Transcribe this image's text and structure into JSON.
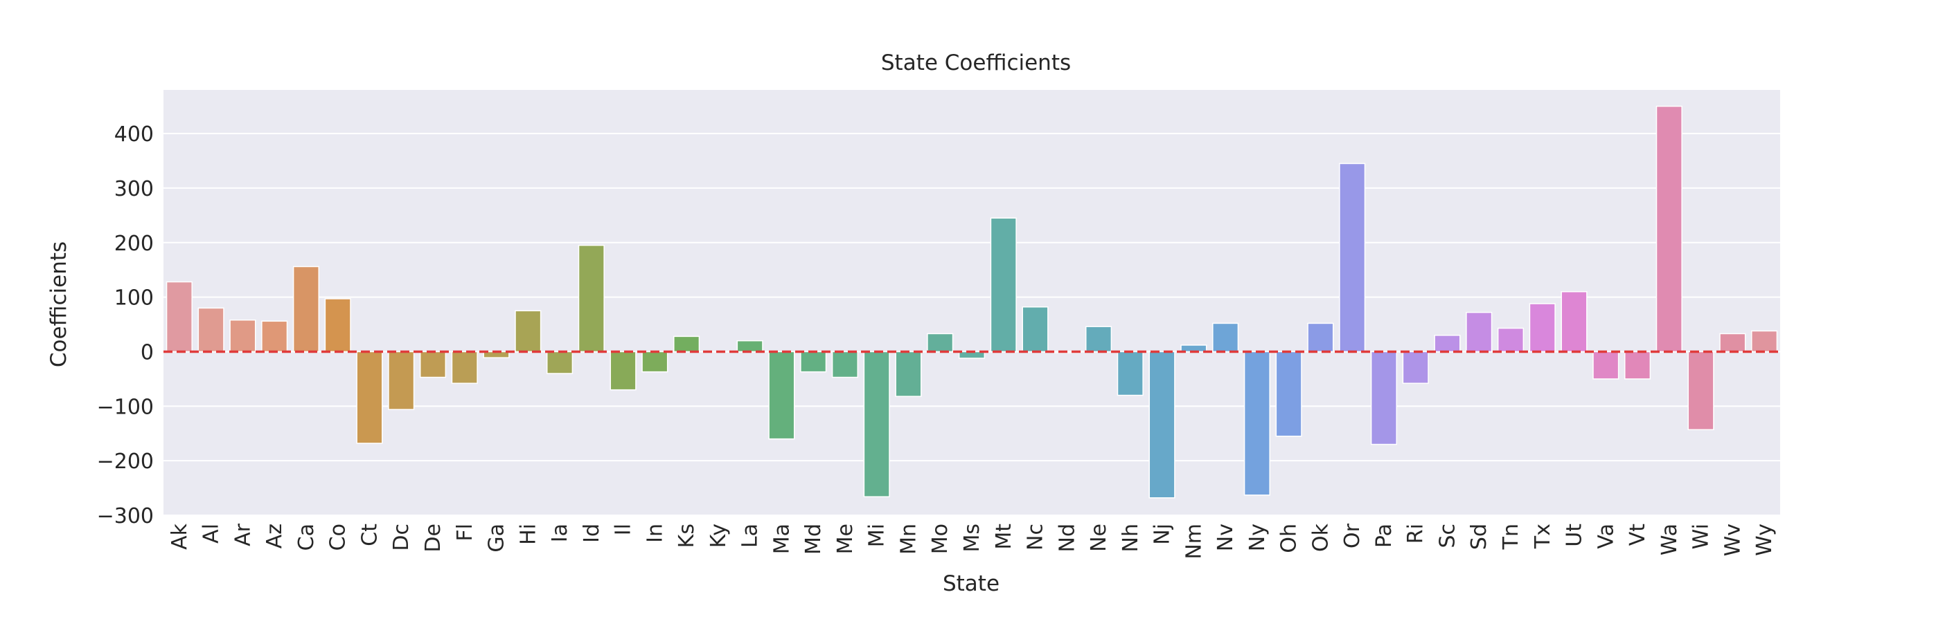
{
  "chart_data": {
    "type": "bar",
    "title": "State Coefficients",
    "xlabel": "State",
    "ylabel": "Coefficients",
    "ylim": [
      -300,
      480
    ],
    "yticks": [
      -300,
      -200,
      -100,
      0,
      100,
      200,
      300,
      400
    ],
    "ytick_labels": [
      "−300",
      "−200",
      "−100",
      "0",
      "100",
      "200",
      "300",
      "400"
    ],
    "grid": true,
    "zero_line": {
      "y": 0,
      "color": "#e03b3b",
      "style": "dashed"
    },
    "categories": [
      "Ak",
      "Al",
      "Ar",
      "Az",
      "Ca",
      "Co",
      "Ct",
      "Dc",
      "De",
      "Fl",
      "Ga",
      "Hi",
      "Ia",
      "Id",
      "Il",
      "In",
      "Ks",
      "Ky",
      "La",
      "Ma",
      "Md",
      "Me",
      "Mi",
      "Mn",
      "Mo",
      "Ms",
      "Mt",
      "Nc",
      "Nd",
      "Ne",
      "Nh",
      "Nj",
      "Nm",
      "Nv",
      "Ny",
      "Oh",
      "Ok",
      "Or",
      "Pa",
      "Ri",
      "Sc",
      "Sd",
      "Tn",
      "Tx",
      "Ut",
      "Va",
      "Vt",
      "Wa",
      "Wi",
      "Wv",
      "Wy"
    ],
    "values": [
      128,
      80,
      58,
      56,
      156,
      97,
      -168,
      -106,
      -47,
      -58,
      -11,
      75,
      -40,
      195,
      -70,
      -37,
      28,
      0,
      20,
      -160,
      -37,
      -47,
      -266,
      -82,
      33,
      -12,
      245,
      82,
      -2,
      46,
      -80,
      -268,
      12,
      52,
      -263,
      -155,
      52,
      345,
      -170,
      -58,
      30,
      72,
      43,
      88,
      110,
      -50,
      -50,
      450,
      -143,
      33,
      38
    ],
    "colors": [
      "#e09aa1",
      "#e09b91",
      "#e09a86",
      "#df9876",
      "#d89565",
      "#d4944f",
      "#ca9850",
      "#c49a52",
      "#bf9c54",
      "#ba9e55",
      "#b4a055",
      "#a8a455",
      "#9fa657",
      "#93a857",
      "#88aa58",
      "#7dac5b",
      "#73ae5f",
      "#6caf6a",
      "#67b073",
      "#64b07c",
      "#63b083",
      "#63b089",
      "#63b08f",
      "#63af95",
      "#63af9b",
      "#62afa2",
      "#62aea7",
      "#62adad",
      "#63acb4",
      "#64abbb",
      "#65aac2",
      "#67a8c9",
      "#6aa7d0",
      "#6ea5d7",
      "#74a2de",
      "#7d9fe3",
      "#8b9be6",
      "#9898e8",
      "#a496e8",
      "#ae94e8",
      "#bb91e7",
      "#c58de4",
      "#cf8ae0",
      "#d987dc",
      "#de86d3",
      "#e087c6",
      "#e188b9",
      "#e08bb1",
      "#e08da9",
      "#e090a3",
      "#e0959e"
    ]
  }
}
